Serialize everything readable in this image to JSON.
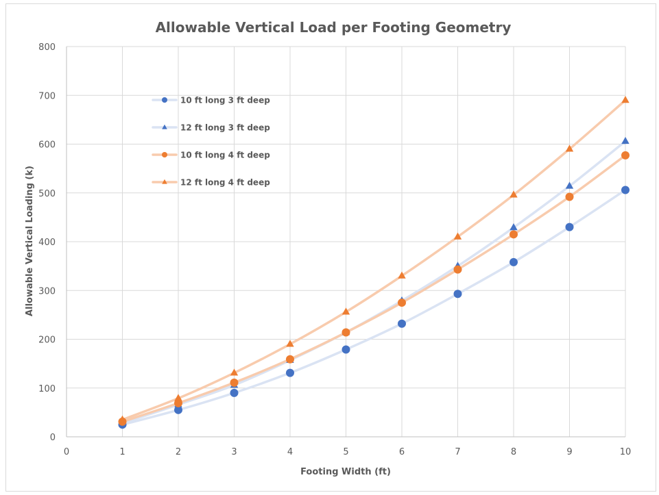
{
  "chart_data": {
    "type": "scatter",
    "title": "Allowable Vertical Load per Footing Geometry",
    "xlabel": "Footing Width (ft)",
    "ylabel": "Allowable Vertical Loading (k)",
    "xlim": [
      0,
      10
    ],
    "ylim": [
      0,
      800
    ],
    "x_ticks": [
      "0",
      "1",
      "2",
      "3",
      "4",
      "5",
      "6",
      "7",
      "8",
      "9",
      "10"
    ],
    "y_ticks": [
      "0",
      "100",
      "200",
      "300",
      "400",
      "500",
      "600",
      "700",
      "800"
    ],
    "grid": true,
    "legend_position": "top-left inside plot",
    "x": [
      1,
      2,
      3,
      4,
      5,
      6,
      7,
      8,
      9,
      10
    ],
    "series": [
      {
        "name": "10 ft long 3 ft deep",
        "marker": "circle",
        "color": "#4472C4",
        "line_color": "#DAE3F3",
        "values": [
          25,
          55,
          90,
          131,
          179,
          232,
          293,
          358,
          430,
          506
        ]
      },
      {
        "name": "12 ft long 3 ft deep",
        "marker": "triangle",
        "color": "#4472C4",
        "line_color": "#DAE3F3",
        "values": [
          28,
          66,
          106,
          157,
          214,
          279,
          350,
          429,
          514,
          606
        ]
      },
      {
        "name": "10 ft long 4 ft deep",
        "marker": "circle",
        "color": "#ED7D31",
        "line_color": "#F8CBAD",
        "values": [
          31,
          69,
          111,
          159,
          214,
          275,
          343,
          415,
          492,
          577
        ]
      },
      {
        "name": "12 ft long 4 ft deep",
        "marker": "triangle",
        "color": "#ED7D31",
        "line_color": "#F8CBAD",
        "values": [
          35,
          79,
          131,
          190,
          256,
          330,
          410,
          496,
          590,
          690
        ]
      }
    ]
  }
}
